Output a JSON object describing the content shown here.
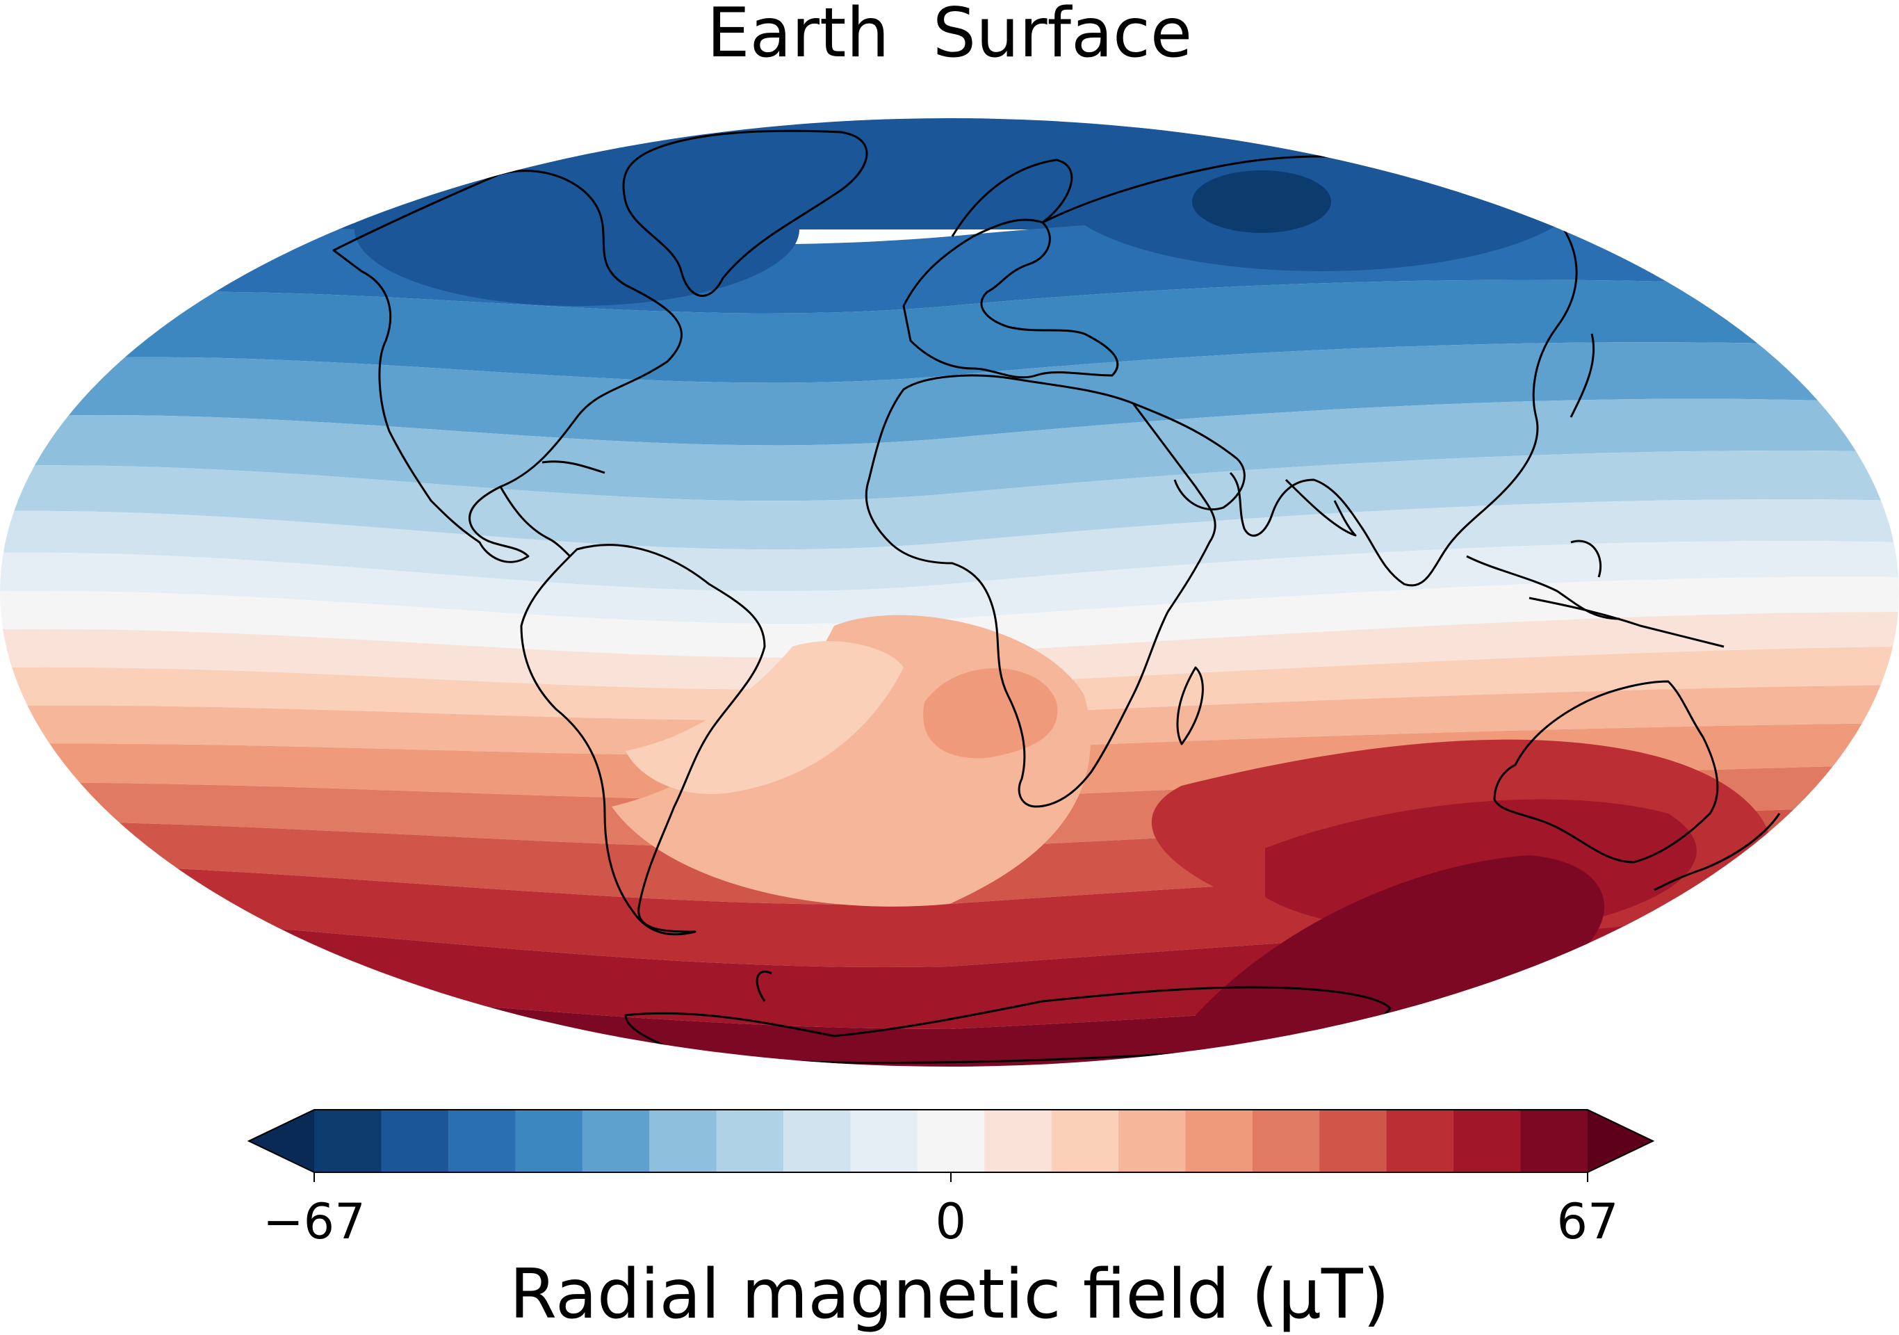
{
  "title": "Earth  Surface",
  "colorbar": {
    "label": "Radial magnetic field (μT)",
    "min": -67,
    "max": 67,
    "ticks": [
      {
        "value": -67,
        "label": "−67"
      },
      {
        "value": 0,
        "label": "0"
      },
      {
        "value": 67,
        "label": "67"
      }
    ],
    "levels": 19,
    "extend": "both",
    "colormap": [
      "#0c3b6e",
      "#1a5698",
      "#2b6fb3",
      "#3d87c0",
      "#5fa1ce",
      "#8ebfdd",
      "#b0d2e6",
      "#d0e3ef",
      "#e5eef5",
      "#f5f5f5",
      "#f9e3d9",
      "#fad0b9",
      "#f6b69a",
      "#f09a7c",
      "#e17a62",
      "#d1564a",
      "#bb2f34",
      "#a11729",
      "#7c0823"
    ],
    "under_color": "#082a55",
    "over_color": "#5e0019"
  },
  "map": {
    "projection": "Mollweide",
    "features": [
      "coastlines"
    ]
  }
}
